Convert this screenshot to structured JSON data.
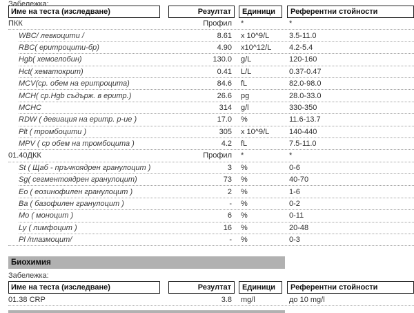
{
  "colors": {
    "section_band_bg": "#b1b1b1",
    "table_border": "#1c1c1c",
    "dotted_separator": "#a0a0a0",
    "text": "#2e2e2e"
  },
  "top_note": {
    "label": "Забележка:"
  },
  "table_headers": {
    "name": "Име на теста (изследване)",
    "result": "Резултат",
    "units": "Единици",
    "reference": "Референтни стойности"
  },
  "cbc_table": {
    "rows": [
      {
        "name": "ПКК",
        "result": "Профил",
        "units": "*",
        "reference": "*",
        "indent": false
      },
      {
        "name": "WBC/ левкоцити /",
        "result": "8.61",
        "units": "x 10^9/L",
        "reference": "3.5-11.0",
        "indent": true
      },
      {
        "name": "RBC( еритроцити-бр)",
        "result": "4.90",
        "units": "x10^12/L",
        "reference": "4.2-5.4",
        "indent": true
      },
      {
        "name": "Hgb( хемоглобин)",
        "result": "130.0",
        "units": "g/L",
        "reference": "120-160",
        "indent": true
      },
      {
        "name": "Hct( хематокрит)",
        "result": "0.41",
        "units": "L/L",
        "reference": "0.37-0.47",
        "indent": true
      },
      {
        "name": "MCV(ср. обем на еритроцита)",
        "result": "84.6",
        "units": "fL",
        "reference": "82.0-98.0",
        "indent": true
      },
      {
        "name": "MCH( ср.Hgb съдърж. в еритр.)",
        "result": "26.6",
        "units": "pg",
        "reference": "28.0-33.0",
        "indent": true
      },
      {
        "name": "MCHC",
        "result": "314",
        "units": "g/l",
        "reference": "330-350",
        "indent": true
      },
      {
        "name": "RDW ( девиация на еритр. р-ие )",
        "result": "17.0",
        "units": "%",
        "reference": "11.6-13.7",
        "indent": true
      },
      {
        "name": "Plt ( тромбоцити )",
        "result": "305",
        "units": "x 10^9/L",
        "reference": "140-440",
        "indent": true
      },
      {
        "name": "MPV ( ср обем на тромбоцита )",
        "result": "4.2",
        "units": "fL",
        "reference": "7.5-11.0",
        "indent": true
      },
      {
        "name": "01.40ДКК",
        "result": "Профил",
        "units": "*",
        "reference": "*",
        "indent": false
      },
      {
        "name": "St ( Щаб - пръчкоядрен гранулоцит )",
        "result": "3",
        "units": "%",
        "reference": "0-6",
        "indent": true
      },
      {
        "name": "Sg( сегментоядрен гранулоцит)",
        "result": "73",
        "units": "%",
        "reference": "40-70",
        "indent": true
      },
      {
        "name": "Eo ( еозинофилен гранулоцит )",
        "result": "2",
        "units": "%",
        "reference": "1-6",
        "indent": true
      },
      {
        "name": "Ba ( базофилен гранулоцит )",
        "result": "-",
        "units": "%",
        "reference": "0-2",
        "indent": true
      },
      {
        "name": "Mo ( моноцит )",
        "result": "6",
        "units": "%",
        "reference": "0-11",
        "indent": true
      },
      {
        "name": "Ly ( лимфоцит )",
        "result": "16",
        "units": "%",
        "reference": "20-48",
        "indent": true
      },
      {
        "name": "Pl /плазмоцит/",
        "result": "-",
        "units": "%",
        "reference": "0-3",
        "indent": true
      }
    ]
  },
  "biochemistry": {
    "section_title": "Биохимия",
    "note_label": "Забележка:",
    "rows": [
      {
        "name": "01.38 CRP",
        "result": "3.8",
        "units": "mg/l",
        "reference": "до 10 mg/l",
        "indent": false
      }
    ]
  }
}
